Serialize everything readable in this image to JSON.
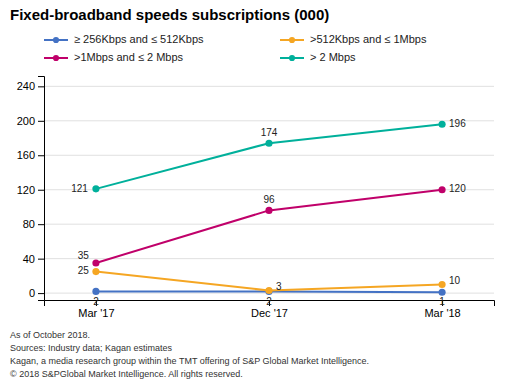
{
  "chart_data": {
    "type": "line",
    "title": "Fixed-broadband speeds subscriptions (000)",
    "categories": [
      "Mar '17",
      "Dec '17",
      "Mar '18"
    ],
    "series": [
      {
        "name": "≥ 256Kbps and ≤ 512Kbps",
        "color": "#4472c4",
        "marker": "circle",
        "values": [
          2,
          2,
          1
        ]
      },
      {
        "name": ">512Kbps and ≤ 1Mbps",
        "color": "#f5a623",
        "marker": "circle",
        "values": [
          25,
          3,
          10
        ]
      },
      {
        "name": ">1Mbps and ≤ 2 Mbps",
        "color": "#c0006a",
        "marker": "circle",
        "values": [
          35,
          96,
          120
        ]
      },
      {
        "name": "> 2 Mbps",
        "color": "#00b09b",
        "marker": "circle",
        "values": [
          121,
          174,
          196
        ]
      }
    ],
    "ylim": [
      -8,
      252
    ],
    "yticks": [
      0,
      40,
      80,
      120,
      160,
      200,
      240
    ],
    "grid": true,
    "legend": "top",
    "data_labels": true,
    "annotations": [
      "As of October 2018.",
      "Sources: Industry data; Kagan estimates",
      "Kagan, a media research group within the TMT offering of S&P Global Market Intelligence.",
      "© 2018 S&PGlobal Market Intelligence. All rights reserved."
    ]
  }
}
